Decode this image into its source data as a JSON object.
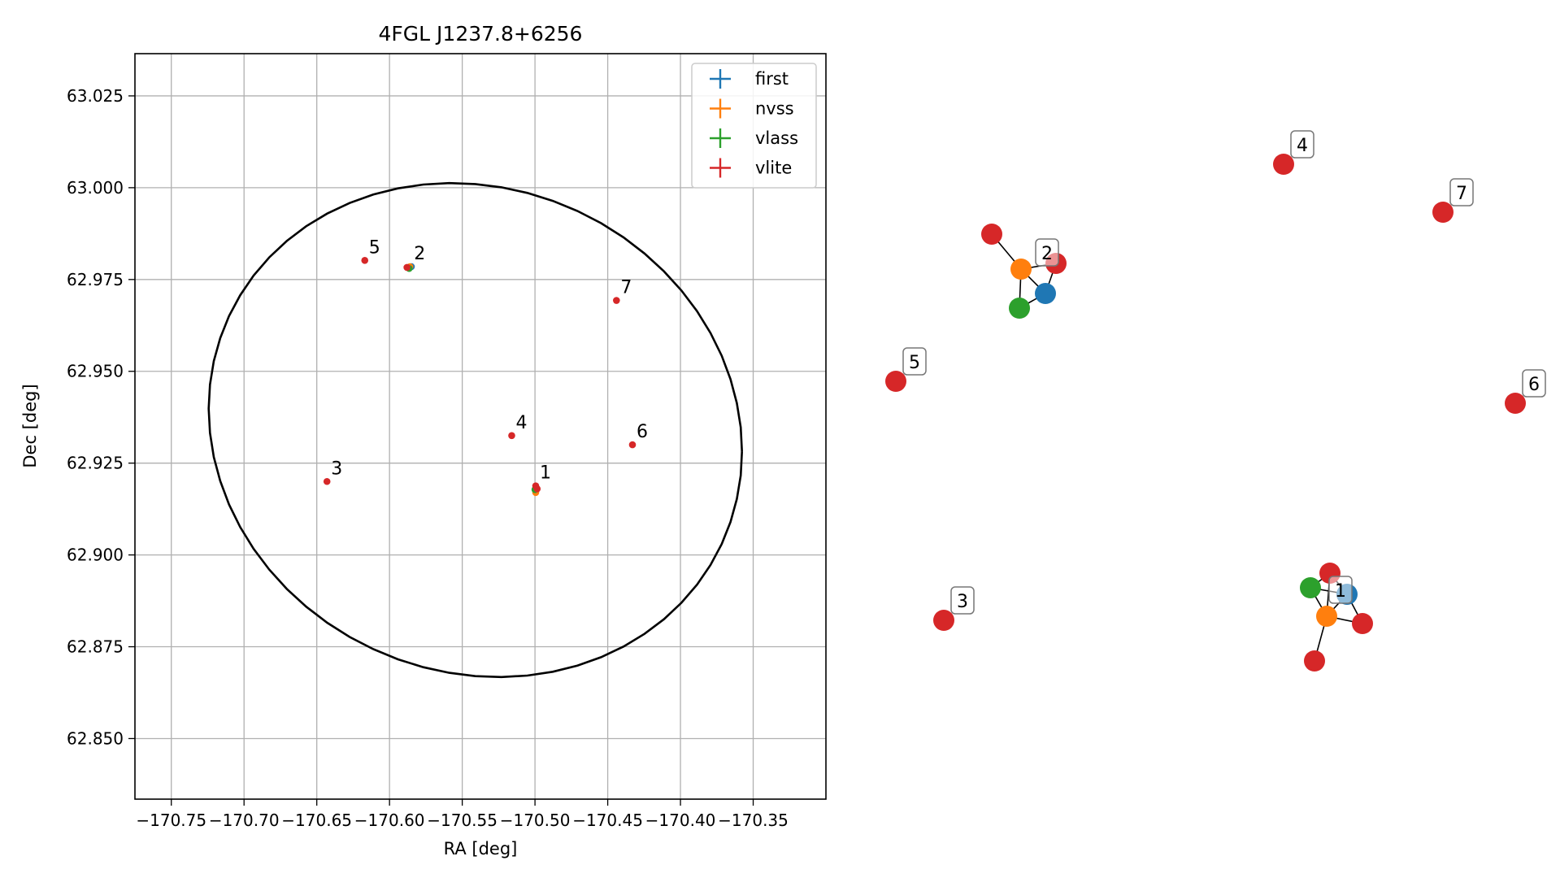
{
  "chart_data": [
    {
      "type": "scatter",
      "title": "4FGL J1237.8+6256",
      "xlabel": "RA [deg]",
      "ylabel": "Dec [deg]",
      "xlim": [
        -170.775,
        -170.3
      ],
      "ylim": [
        62.8335,
        63.0365
      ],
      "grid": true,
      "legend_position": "top-right",
      "x_ticks": [
        -170.75,
        -170.7,
        -170.65,
        -170.6,
        -170.55,
        -170.5,
        -170.45,
        -170.4,
        -170.35
      ],
      "x_tick_labels": [
        "−170.75",
        "−170.70",
        "−170.65",
        "−170.60",
        "−170.55",
        "−170.50",
        "−170.45",
        "−170.40",
        "−170.35"
      ],
      "y_ticks": [
        62.85,
        62.875,
        62.9,
        62.925,
        62.95,
        62.975,
        63.0,
        63.025
      ],
      "y_tick_labels": [
        "62.850",
        "62.875",
        "62.900",
        "62.925",
        "62.950",
        "62.975",
        "63.000",
        "63.025"
      ],
      "series": [
        {
          "name": "first",
          "color": "#1f77b4",
          "points": [
            {
              "ra": -170.585,
              "dec": 62.9785
            },
            {
              "ra": -170.499,
              "dec": 62.918
            }
          ]
        },
        {
          "name": "nvss",
          "color": "#ff7f0e",
          "points": [
            {
              "ra": -170.586,
              "dec": 62.9785
            },
            {
              "ra": -170.4995,
              "dec": 62.917
            }
          ]
        },
        {
          "name": "vlass",
          "color": "#2ca02c",
          "points": [
            {
              "ra": -170.5865,
              "dec": 62.978
            },
            {
              "ra": -170.5,
              "dec": 62.9178
            }
          ]
        },
        {
          "name": "vlite",
          "color": "#d62728",
          "points": [
            {
              "ra": -170.4995,
              "dec": 62.9188
            },
            {
              "ra": -170.4985,
              "dec": 62.918
            },
            {
              "ra": -170.588,
              "dec": 62.9783
            },
            {
              "ra": -170.643,
              "dec": 62.92
            },
            {
              "ra": -170.516,
              "dec": 62.9325
            },
            {
              "ra": -170.617,
              "dec": 62.9802
            },
            {
              "ra": -170.433,
              "dec": 62.93
            },
            {
              "ra": -170.444,
              "dec": 62.9693
            }
          ]
        }
      ],
      "annotations": [
        {
          "text": "1",
          "ra": -170.4995,
          "dec": 62.9188
        },
        {
          "text": "2",
          "ra": -170.586,
          "dec": 62.9785
        },
        {
          "text": "3",
          "ra": -170.643,
          "dec": 62.92
        },
        {
          "text": "4",
          "ra": -170.516,
          "dec": 62.9325
        },
        {
          "text": "5",
          "ra": -170.617,
          "dec": 62.9802
        },
        {
          "text": "6",
          "ra": -170.433,
          "dec": 62.93
        },
        {
          "text": "7",
          "ra": -170.444,
          "dec": 62.9693
        }
      ],
      "ellipse": {
        "center_ra": -170.541,
        "center_dec": 62.934,
        "semi_ra": 0.184,
        "semi_dec": 0.067,
        "angle_deg": -5
      }
    },
    {
      "type": "network",
      "node_colors": {
        "first": "#1f77b4",
        "nvss": "#ff7f0e",
        "vlass": "#2ca02c",
        "vlite": "#d62728"
      },
      "labels": [
        "1",
        "2",
        "3",
        "4",
        "5",
        "6",
        "7"
      ]
    }
  ]
}
